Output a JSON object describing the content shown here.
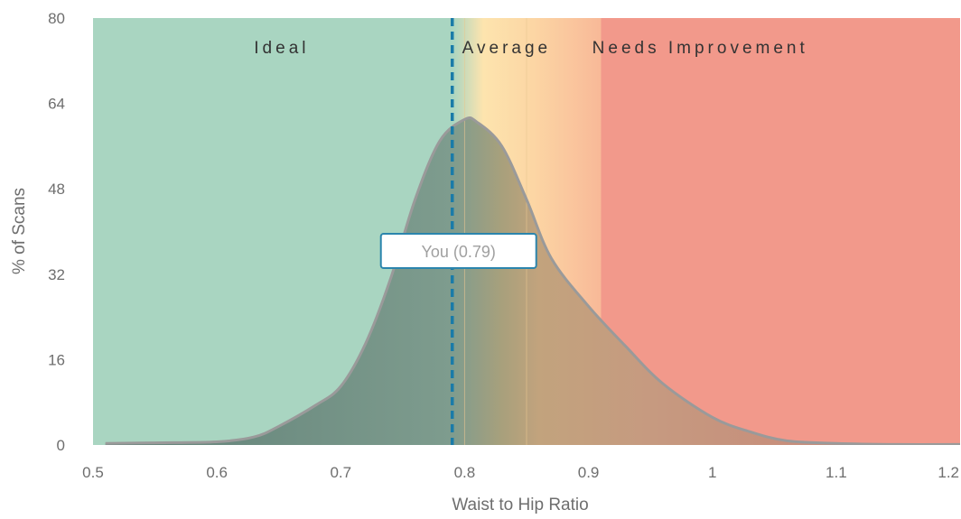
{
  "chart_data": {
    "type": "area",
    "xlabel": "Waist to Hip Ratio",
    "ylabel": "% of Scans",
    "xlim": [
      0.5,
      1.2
    ],
    "ylim": [
      0,
      80
    ],
    "x_ticks": [
      "0.5",
      "0.6",
      "0.7",
      "0.8",
      "0.9",
      "1",
      "1.1",
      "1.2"
    ],
    "y_ticks": [
      "0",
      "16",
      "32",
      "48",
      "64",
      "80"
    ],
    "zones": [
      {
        "label": "Ideal",
        "from": 0.5,
        "to": 0.8,
        "color": "#a9d5c1"
      },
      {
        "label": "Average",
        "from": 0.8,
        "to": 0.85,
        "color": "#fde4ae"
      },
      {
        "label": "Needs Improvement",
        "from": 0.85,
        "to": 1.2,
        "color": "#f2998b"
      }
    ],
    "distribution": {
      "x": [
        0.51,
        0.55,
        0.6,
        0.63,
        0.65,
        0.68,
        0.7,
        0.72,
        0.74,
        0.76,
        0.78,
        0.8,
        0.81,
        0.83,
        0.85,
        0.87,
        0.9,
        0.93,
        0.96,
        1.0,
        1.03,
        1.06,
        1.1,
        1.15,
        1.2
      ],
      "y": [
        0.3,
        0.4,
        0.6,
        1.5,
        3.5,
        7.5,
        11,
        19,
        31,
        46,
        57,
        61,
        60.5,
        56,
        46,
        35,
        26,
        18.5,
        11.5,
        5.2,
        2.5,
        0.8,
        0.3,
        0.1,
        0.1
      ]
    },
    "marker": {
      "value": 0.79,
      "label": "You (0.79)",
      "color": "#1a7ba8"
    },
    "colors": {
      "curve_stroke": "#9a9a9a",
      "under_curve_tint": "#5f7f76",
      "label_box_border": "#2b85ad"
    }
  }
}
